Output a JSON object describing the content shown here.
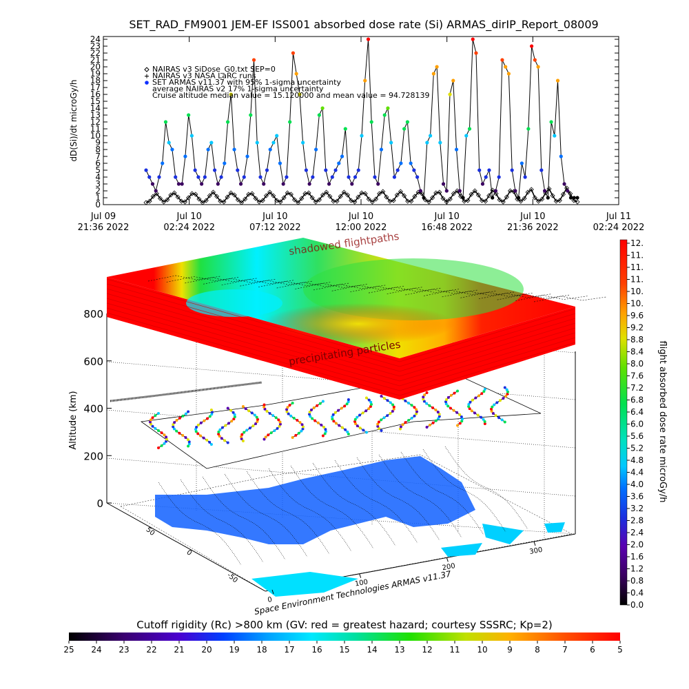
{
  "chart_data": [
    {
      "type": "line",
      "title": "SET_RAD_FM9001  JEM-EF ISS001 absorbed dose rate (Si) ARMAS_dirIP_Report_08009",
      "ylabel": "dD(Si)/dt microGy/h",
      "ylim": [
        0,
        24
      ],
      "yticks": [
        "0",
        "1",
        "2",
        "3",
        "4",
        "5",
        "6",
        "7",
        "8",
        "9",
        "10",
        "11",
        "12",
        "13",
        "14",
        "15",
        "16",
        "17",
        "18",
        "19",
        "20",
        "21",
        "22",
        "23",
        "24"
      ],
      "xticks": [
        {
          "line1": "Jul 09",
          "line2": "21:36 2022"
        },
        {
          "line1": "Jul 10",
          "line2": "02:24 2022"
        },
        {
          "line1": "Jul 10",
          "line2": "07:12 2022"
        },
        {
          "line1": "Jul 10",
          "line2": "12:00 2022"
        },
        {
          "line1": "Jul 10",
          "line2": "16:48 2022"
        },
        {
          "line1": "Jul 10",
          "line2": "21:36 2022"
        },
        {
          "line1": "Jul 11",
          "line2": "02:24 2022"
        }
      ],
      "legend": [
        {
          "marker": "diamond",
          "label": "NAIRAS v3 SiDose_G0.txt SEP=0"
        },
        {
          "marker": "plus",
          "label": "NAIRAS v3 NASA LaRC runs"
        },
        {
          "marker": "dot",
          "label": "SET ARMAS v11.37 with 95% 1-sigma uncertainty"
        },
        {
          "marker": "none",
          "label": "average NAIRAS v2 17% 1-sigma uncertainty"
        },
        {
          "marker": "none",
          "label": "Cruise altitude median value = 15.120000 and mean value = 94.728139"
        }
      ],
      "legend_placement": "top-left",
      "series": [
        {
          "values": [
            5,
            4,
            3,
            2,
            4,
            6,
            12,
            9,
            8,
            4,
            3,
            3,
            7,
            13,
            10,
            5,
            4,
            3,
            4,
            8,
            9,
            5,
            3,
            4,
            6,
            12,
            16,
            8,
            5,
            3,
            4,
            7,
            13,
            21,
            9,
            4,
            3,
            5,
            8,
            9,
            10,
            6,
            3,
            4,
            12,
            22,
            19,
            16,
            9,
            5,
            3,
            4,
            8,
            13,
            14,
            5,
            3,
            4,
            5,
            6,
            7,
            11,
            4,
            3,
            4,
            5,
            10,
            18,
            24,
            12,
            4,
            3,
            8,
            13,
            14,
            9,
            4,
            5,
            6,
            11,
            12,
            6,
            5,
            4,
            2,
            1,
            9,
            10,
            19,
            20,
            9,
            3,
            2,
            16,
            18,
            8,
            2,
            1,
            10,
            11,
            24,
            22,
            5,
            3,
            4,
            5,
            1,
            2,
            4,
            21,
            20,
            19,
            5,
            2,
            1,
            6,
            4,
            11,
            23,
            21,
            20,
            5,
            2,
            1,
            12,
            10,
            18,
            7,
            3,
            2,
            1,
            1,
            1
          ]
        },
        {
          "values": [
            0.3,
            0.5,
            1.2,
            1.6,
            0.9,
            0.4,
            0.7,
            1.4,
            1.7,
            1.1,
            0.5,
            0.4,
            1.0,
            1.6,
            1.5,
            0.8,
            0.3,
            0.6,
            1.3,
            1.8,
            1.2,
            0.5,
            0.4,
            1.1,
            1.7,
            1.4,
            0.7,
            0.3,
            0.8,
            1.5,
            1.6,
            0.9,
            0.4,
            0.6,
            1.3,
            1.8,
            1.3,
            0.6,
            0.4,
            1.0,
            1.7,
            1.5,
            0.7,
            0.3,
            0.9,
            1.6,
            1.7,
            1.0,
            0.4,
            0.7,
            1.4,
            1.8,
            1.2,
            0.5,
            0.5,
            1.2,
            1.8,
            1.4,
            0.6,
            0.4,
            1.1,
            1.7,
            1.6,
            0.8,
            0.4,
            0.8,
            1.6,
            1.9,
            1.1,
            0.5,
            0.6,
            1.4,
            1.9,
            1.3,
            0.5,
            0.5,
            1.2,
            1.8,
            1.6,
            0.7,
            0.4,
            1.0,
            1.7,
            1.8,
            0.9,
            0.4,
            0.8,
            1.6,
            2.0,
            1.2,
            0.5,
            0.6,
            1.5,
            2.0,
            1.4,
            0.6,
            0.5,
            1.3,
            2.1,
            1.6,
            0.7,
            0.4,
            1.1,
            2.0,
            1.9,
            0.8,
            0.5,
            0.9,
            1.8,
            2.2,
            1.0,
            0.5,
            0.8,
            1.7,
            2.3,
            1.3,
            0.5,
            0.6,
            1.5,
            2.4,
            1.6,
            0.6,
            0.4
          ]
        }
      ]
    },
    {
      "type": "heatmap",
      "zlabel": "Altitude (km)",
      "zticks": [
        "0",
        "200",
        "400",
        "600",
        "800"
      ],
      "xticks": [
        "0",
        "100",
        "200",
        "300"
      ],
      "yticks": [
        "-50",
        "0",
        "50"
      ],
      "annotations": [
        "shadowed flightpaths",
        "precipitating particles"
      ],
      "footer": "Space Environment Technologies ARMAS v11.37",
      "colorbar": {
        "label": "flight absorbed dose rate microGy/h",
        "ticks": [
          "0.0",
          "0.4",
          "0.8",
          "1.2",
          "1.6",
          "2.0",
          "2.4",
          "2.8",
          "3.2",
          "3.6",
          "4.0",
          "4.4",
          "4.8",
          "5.2",
          "5.6",
          "6.0",
          "6.4",
          "6.8",
          "7.2",
          "7.6",
          "8.0",
          "8.4",
          "8.8",
          "9.2",
          "9.6",
          "10.",
          "10.",
          "11.",
          "11.",
          "11.",
          "12."
        ]
      },
      "rigidity_bar": {
        "label": "Cutoff rigidity (Rc) >800 km (GV: red = greatest hazard; courtesy SSSRC; Kp=2)",
        "ticks": [
          "25",
          "24",
          "23",
          "22",
          "21",
          "20",
          "19",
          "18",
          "17",
          "16",
          "15",
          "14",
          "13",
          "12",
          "11",
          "10",
          "9",
          "8",
          "7",
          "6",
          "5"
        ]
      }
    }
  ]
}
